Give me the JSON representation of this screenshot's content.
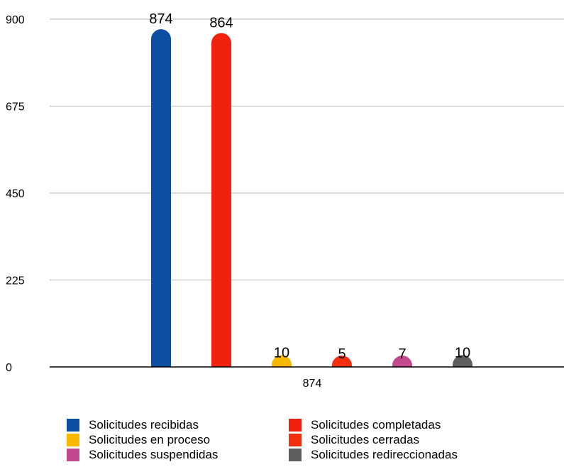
{
  "chart_data": {
    "type": "bar",
    "categories": [
      "874"
    ],
    "series": [
      {
        "name": "Solicitudes recibidas",
        "values": [
          874
        ],
        "color": "#0b4ea2"
      },
      {
        "name": "Solicitudes completadas",
        "values": [
          864
        ],
        "color": "#f0210d"
      },
      {
        "name": "Solicitudes en proceso",
        "values": [
          10
        ],
        "color": "#f7b900"
      },
      {
        "name": "Solicitudes cerradas",
        "values": [
          5
        ],
        "color": "#f2300f"
      },
      {
        "name": "Solicitudes suspendidas",
        "values": [
          7
        ],
        "color": "#c2498e"
      },
      {
        "name": "Solicitudes redireccionadas",
        "values": [
          10
        ],
        "color": "#5e5e5e"
      }
    ],
    "ylim": [
      0,
      900
    ],
    "yticks": [
      "0",
      "225",
      "450",
      "675",
      "900"
    ],
    "grid": true,
    "legend_position": "bottom",
    "data_labels": [
      "874",
      "864",
      "10",
      "5",
      "7",
      "10"
    ]
  }
}
